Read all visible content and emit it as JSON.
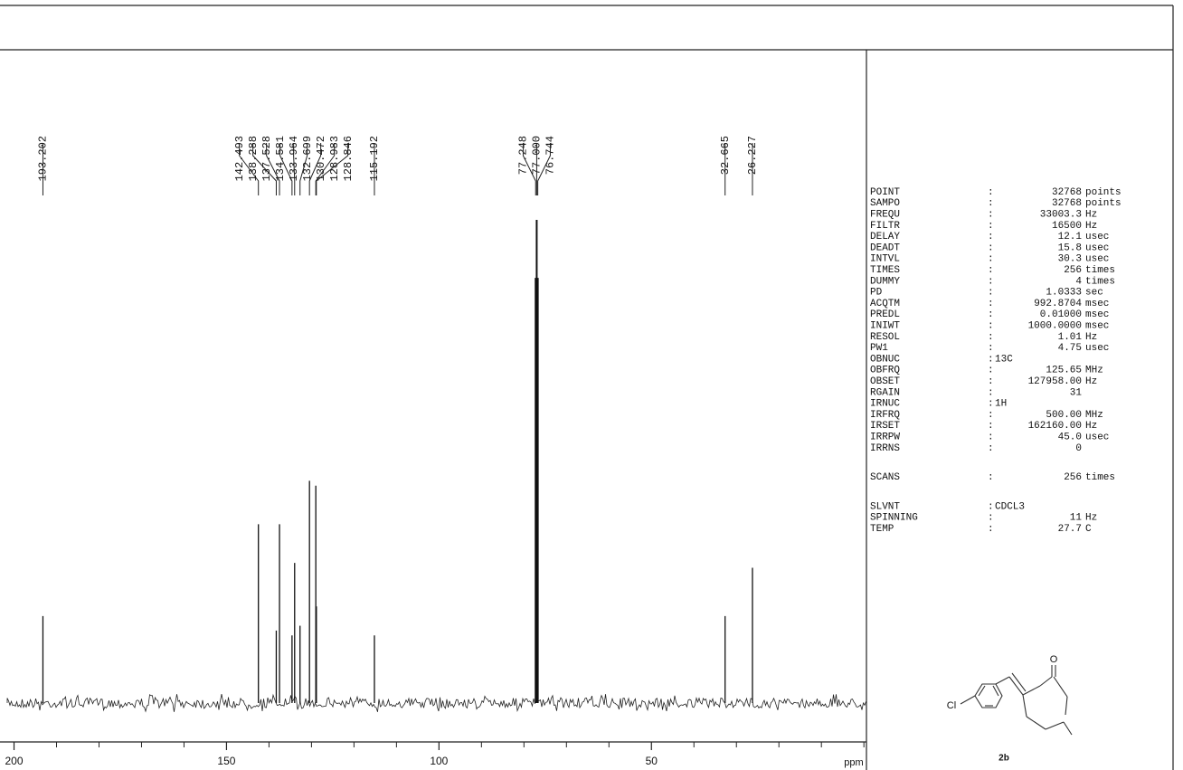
{
  "chart_data": {
    "type": "spectrum",
    "x": [
      193.202,
      142.493,
      138.288,
      137.528,
      134.581,
      133.964,
      132.699,
      130.472,
      128.983,
      128.846,
      115.192,
      77.248,
      77.0,
      76.744,
      32.665,
      26.227
    ],
    "x_labels": [
      "193.202",
      "142.493",
      "138.288",
      "137.528",
      "134.581",
      "133.964",
      "132.699",
      "130.472",
      "128.983",
      "128.846",
      "115.192",
      "77.248",
      "77.000",
      "76.744",
      "32.665",
      "26.227"
    ],
    "values": [
      18,
      37,
      15,
      37,
      14,
      29,
      16,
      46,
      45,
      20,
      14,
      88,
      100,
      88,
      18,
      28
    ],
    "xlim": [
      201.6,
      -0.6
    ],
    "xticks": [
      200,
      150,
      100,
      50
    ],
    "xminor": [
      190,
      180,
      170,
      160,
      140,
      130,
      120,
      110,
      90,
      80,
      70,
      60,
      40,
      30,
      20,
      10,
      0
    ],
    "x_unit": "ppm",
    "ylim": [
      0,
      100
    ],
    "color": "#111111"
  },
  "parameter_blocks": [
    [
      {
        "name": "POINT",
        "value": "32768",
        "unit": "points"
      },
      {
        "name": "SAMPO",
        "value": "32768",
        "unit": "points"
      },
      {
        "name": "FREQU",
        "value": "33003.3",
        "unit": "Hz"
      },
      {
        "name": "FILTR",
        "value": "16500",
        "unit": "Hz"
      },
      {
        "name": "DELAY",
        "value": "12.1",
        "unit": "usec"
      },
      {
        "name": "DEADT",
        "value": "15.8",
        "unit": "usec"
      },
      {
        "name": "INTVL",
        "value": "30.3",
        "unit": "usec"
      },
      {
        "name": "TIMES",
        "value": "256",
        "unit": "times"
      },
      {
        "name": "DUMMY",
        "value": "4",
        "unit": "times"
      },
      {
        "name": "PD",
        "value": "1.0333",
        "unit": "sec"
      },
      {
        "name": "ACQTM",
        "value": "992.8704",
        "unit": "msec"
      },
      {
        "name": "PREDL",
        "value": "0.01000",
        "unit": "msec"
      },
      {
        "name": "INIWT",
        "value": "1000.0000",
        "unit": "msec"
      },
      {
        "name": "RESOL",
        "value": "1.01",
        "unit": "Hz"
      },
      {
        "name": "PW1",
        "value": "4.75",
        "unit": "usec"
      },
      {
        "name": "OBNUC",
        "text": "13C"
      },
      {
        "name": "OBFRQ",
        "value": "125.65",
        "unit": "MHz"
      },
      {
        "name": "OBSET",
        "value": "127958.00",
        "unit": "Hz"
      },
      {
        "name": "RGAIN",
        "value": "31"
      },
      {
        "name": "IRNUC",
        "text": "1H"
      },
      {
        "name": "IRFRQ",
        "value": "500.00",
        "unit": "MHz"
      },
      {
        "name": "IRSET",
        "value": "162160.00",
        "unit": "Hz"
      },
      {
        "name": "IRRPW",
        "value": "45.0",
        "unit": "usec"
      },
      {
        "name": "IRRNS",
        "value": "0"
      }
    ],
    [
      {
        "name": "SCANS",
        "value": "256",
        "unit": "times"
      }
    ],
    [
      {
        "name": "SLVNT",
        "text": "CDCL3"
      },
      {
        "name": "SPINNING",
        "value": "11",
        "unit": "Hz"
      },
      {
        "name": "TEMP",
        "value": "27.7",
        "unit": "C"
      }
    ]
  ],
  "structure": {
    "atoms": [
      "Cl",
      "O"
    ],
    "label": "2b"
  }
}
